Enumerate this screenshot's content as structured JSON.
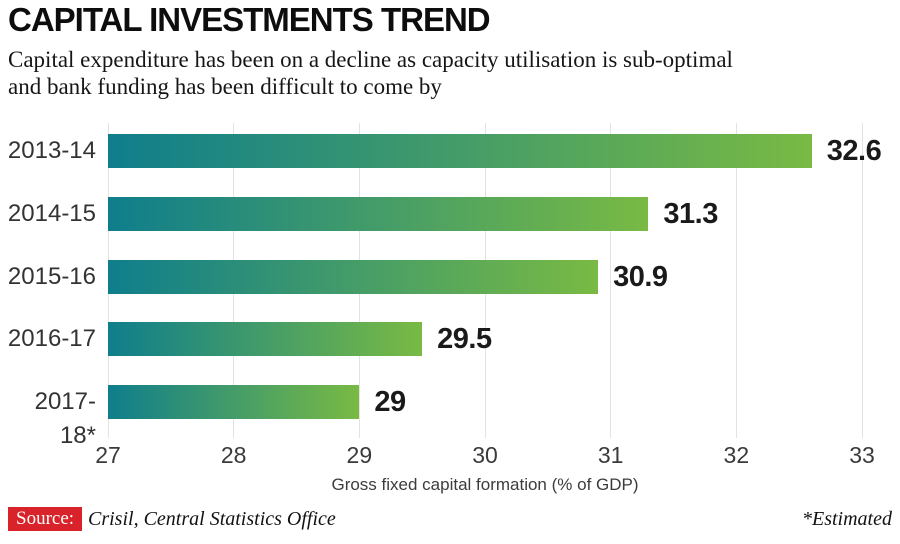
{
  "header": {
    "title": "CAPITAL INVESTMENTS TREND",
    "subtitle_line1": "Capital expenditure has been on a decline as capacity utilisation is sub-optimal",
    "subtitle_line2": "and bank funding has been difficult to come by"
  },
  "chart_data": {
    "type": "bar",
    "orientation": "horizontal",
    "categories": [
      "2013-14",
      "2014-15",
      "2015-16",
      "2016-17",
      "2017-18*"
    ],
    "values": [
      32.6,
      31.3,
      30.9,
      29.5,
      29
    ],
    "value_labels": [
      "32.6",
      "31.3",
      "30.9",
      "29.5",
      "29"
    ],
    "title": "CAPITAL INVESTMENTS TREND",
    "xlabel": "Gross fixed capital formation (% of GDP)",
    "ylabel": "",
    "xlim": [
      27,
      33
    ],
    "xticks": [
      27,
      28,
      29,
      30,
      31,
      32,
      33
    ],
    "grid": true,
    "grid_color": "#E3E3E3",
    "bar_gradient_start": "#0F7E8C",
    "bar_gradient_end": "#79BA44"
  },
  "footer": {
    "source_label": "Source:",
    "source_text": "Crisil, Central Statistics Office",
    "source_badge_color": "#D8232A",
    "note": "*Estimated"
  }
}
